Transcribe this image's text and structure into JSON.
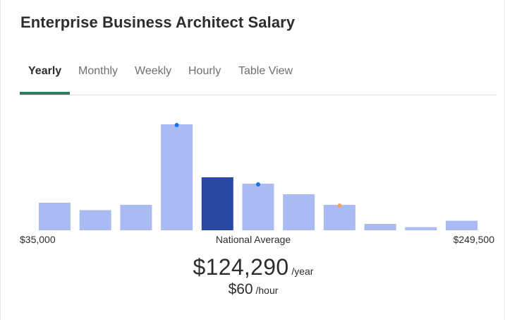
{
  "title": "Enterprise Business Architect Salary",
  "tabs": [
    {
      "label": "Yearly",
      "active": true
    },
    {
      "label": "Monthly",
      "active": false
    },
    {
      "label": "Weekly",
      "active": false
    },
    {
      "label": "Hourly",
      "active": false
    },
    {
      "label": "Table View",
      "active": false
    }
  ],
  "colors": {
    "accent": "#2a7a60",
    "bar": "#a9bbf2",
    "bar_highlight": "#2948a6",
    "marker_blue": "#1a73e8",
    "marker_orange": "#f5a25d"
  },
  "chart_data": {
    "type": "bar",
    "title": "",
    "xlabel": "National Average",
    "ylabel": "",
    "x_range_labels": {
      "min": "$35,000",
      "max": "$249,500"
    },
    "values": [
      26,
      19,
      24,
      100,
      50,
      44,
      34,
      24,
      6,
      3,
      9
    ],
    "ylim": [
      0,
      100
    ],
    "highlight_index": 4,
    "markers": [
      {
        "bar_index": 3,
        "color": "blue"
      },
      {
        "bar_index": 5,
        "color": "blue"
      },
      {
        "bar_index": 7,
        "color": "orange"
      }
    ]
  },
  "salary": {
    "yearly_amount": "$124,290",
    "yearly_unit": "/year",
    "hourly_amount": "$60",
    "hourly_unit": "/hour"
  }
}
